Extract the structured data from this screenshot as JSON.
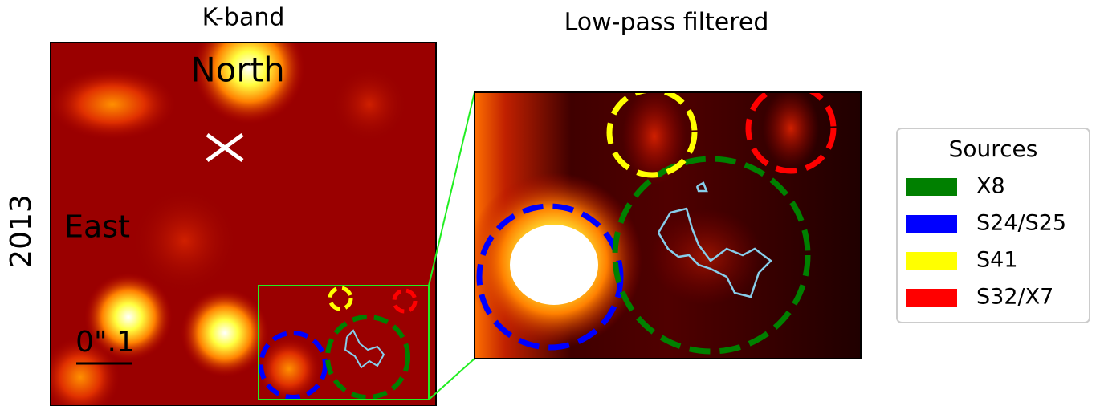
{
  "left_panel": {
    "title": "K-band",
    "row_label": "2013",
    "north": "North",
    "east": "East",
    "scale": "0\".1"
  },
  "right_panel": {
    "title": "Low-pass filtered"
  },
  "legend": {
    "title": "Sources",
    "entries": [
      {
        "label": "X8",
        "color": "#008000"
      },
      {
        "label": "S24/S25",
        "color": "#0000ff"
      },
      {
        "label": "S41",
        "color": "#ffff00"
      },
      {
        "label": "S32/X7",
        "color": "#ff0000"
      }
    ]
  }
}
